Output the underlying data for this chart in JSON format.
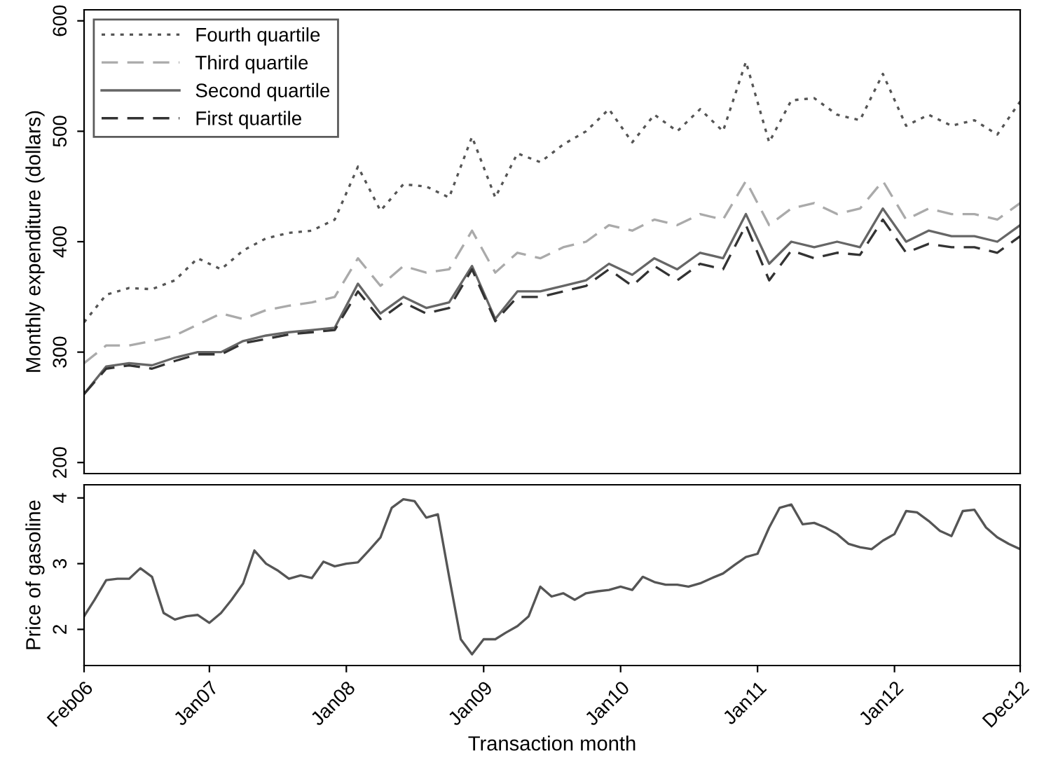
{
  "chart_data": [
    {
      "type": "line",
      "ylabel": "Monthly expenditure (dollars)",
      "xlim": [
        "2006-02",
        "2012-12"
      ],
      "ylim": [
        190,
        610
      ],
      "yticks": [
        200,
        300,
        400,
        500,
        600
      ],
      "tick_labels": "y",
      "grid": false,
      "legend": "top left",
      "marker": "none",
      "x": [
        "2006-02",
        "2006-04",
        "2006-06",
        "2006-08",
        "2006-10",
        "2006-12",
        "2007-02",
        "2007-04",
        "2007-06",
        "2007-08",
        "2007-10",
        "2007-12",
        "2008-02",
        "2008-04",
        "2008-06",
        "2008-08",
        "2008-10",
        "2008-12",
        "2009-02",
        "2009-04",
        "2009-06",
        "2009-08",
        "2009-10",
        "2009-12",
        "2010-02",
        "2010-04",
        "2010-06",
        "2010-08",
        "2010-10",
        "2010-12",
        "2011-02",
        "2011-04",
        "2011-06",
        "2011-08",
        "2011-10",
        "2011-12",
        "2012-02",
        "2012-04",
        "2012-06",
        "2012-08",
        "2012-10",
        "2012-12"
      ],
      "series": [
        {
          "name": "Fourth quartile",
          "color": "#555555",
          "line_style": "dotted",
          "values": [
            327,
            352,
            358,
            357,
            365,
            385,
            375,
            392,
            403,
            408,
            410,
            420,
            468,
            428,
            452,
            450,
            440,
            495,
            440,
            480,
            472,
            488,
            500,
            520,
            490,
            515,
            500,
            520,
            500,
            563,
            490,
            528,
            530,
            515,
            510,
            552,
            505,
            515,
            505,
            510,
            497,
            527
          ]
        },
        {
          "name": "Third quartile",
          "color": "#aaaaaa",
          "line_style": "dashed",
          "values": [
            290,
            306,
            306,
            310,
            315,
            325,
            335,
            330,
            338,
            342,
            345,
            350,
            385,
            360,
            378,
            372,
            375,
            410,
            372,
            390,
            385,
            395,
            400,
            415,
            410,
            420,
            415,
            425,
            420,
            455,
            415,
            430,
            435,
            425,
            430,
            455,
            420,
            430,
            425,
            425,
            420,
            435
          ]
        },
        {
          "name": "Second quartile",
          "color": "#666666",
          "line_style": "solid",
          "values": [
            262,
            287,
            290,
            288,
            295,
            300,
            300,
            310,
            315,
            318,
            320,
            322,
            362,
            335,
            350,
            340,
            345,
            378,
            330,
            355,
            355,
            360,
            365,
            380,
            370,
            385,
            375,
            390,
            385,
            425,
            380,
            400,
            395,
            400,
            395,
            430,
            400,
            410,
            405,
            405,
            400,
            415
          ]
        },
        {
          "name": "First quartile",
          "color": "#333333",
          "line_style": "dashed",
          "values": [
            262,
            285,
            288,
            285,
            292,
            298,
            298,
            308,
            312,
            316,
            318,
            320,
            355,
            330,
            345,
            335,
            340,
            375,
            328,
            350,
            350,
            355,
            360,
            375,
            360,
            378,
            365,
            380,
            375,
            415,
            365,
            392,
            385,
            390,
            388,
            420,
            390,
            398,
            395,
            395,
            390,
            405
          ]
        }
      ]
    },
    {
      "type": "line",
      "ylabel": "Price of gasoline",
      "xlabel": "Transaction month",
      "xlim": [
        "2006-02",
        "2012-12"
      ],
      "ylim": [
        1.45,
        4.2
      ],
      "yticks": [
        2,
        3,
        4
      ],
      "grid": false,
      "marker": "none",
      "xticks": [
        {
          "value": "2006-02",
          "label": "Feb06"
        },
        {
          "value": "2007-01",
          "label": "Jan07"
        },
        {
          "value": "2008-01",
          "label": "Jan08"
        },
        {
          "value": "2009-01",
          "label": "Jan09"
        },
        {
          "value": "2010-01",
          "label": "Jan10"
        },
        {
          "value": "2011-01",
          "label": "Jan11"
        },
        {
          "value": "2012-01",
          "label": "Jan12"
        },
        {
          "value": "2012-12",
          "label": "Dec12"
        }
      ],
      "x": [
        "2006-02",
        "2006-03",
        "2006-04",
        "2006-05",
        "2006-06",
        "2006-07",
        "2006-08",
        "2006-09",
        "2006-10",
        "2006-11",
        "2006-12",
        "2007-01",
        "2007-02",
        "2007-03",
        "2007-04",
        "2007-05",
        "2007-06",
        "2007-07",
        "2007-08",
        "2007-09",
        "2007-10",
        "2007-11",
        "2007-12",
        "2008-01",
        "2008-02",
        "2008-03",
        "2008-04",
        "2008-05",
        "2008-06",
        "2008-07",
        "2008-08",
        "2008-09",
        "2008-10",
        "2008-11",
        "2008-12",
        "2009-01",
        "2009-02",
        "2009-03",
        "2009-04",
        "2009-05",
        "2009-06",
        "2009-07",
        "2009-08",
        "2009-09",
        "2009-10",
        "2009-11",
        "2009-12",
        "2010-01",
        "2010-02",
        "2010-03",
        "2010-04",
        "2010-05",
        "2010-06",
        "2010-07",
        "2010-08",
        "2010-09",
        "2010-10",
        "2010-11",
        "2010-12",
        "2011-01",
        "2011-02",
        "2011-03",
        "2011-04",
        "2011-05",
        "2011-06",
        "2011-07",
        "2011-08",
        "2011-09",
        "2011-10",
        "2011-11",
        "2011-12",
        "2012-01",
        "2012-02",
        "2012-03",
        "2012-04",
        "2012-05",
        "2012-06",
        "2012-07",
        "2012-08",
        "2012-09",
        "2012-10",
        "2012-11",
        "2012-12"
      ],
      "series": [
        {
          "color": "#555555",
          "line_style": "solid",
          "values": [
            2.2,
            2.45,
            2.75,
            2.77,
            2.77,
            2.93,
            2.8,
            2.25,
            2.15,
            2.2,
            2.22,
            2.1,
            2.25,
            2.45,
            2.7,
            3.2,
            3.0,
            2.9,
            2.77,
            2.82,
            2.78,
            3.03,
            2.96,
            3.0,
            3.02,
            3.2,
            3.4,
            3.85,
            3.98,
            3.95,
            3.7,
            3.75,
            2.8,
            1.85,
            1.62,
            1.85,
            1.85,
            1.95,
            2.05,
            2.2,
            2.65,
            2.5,
            2.55,
            2.45,
            2.55,
            2.58,
            2.6,
            2.65,
            2.6,
            2.8,
            2.72,
            2.68,
            2.68,
            2.65,
            2.7,
            2.78,
            2.85,
            2.98,
            3.1,
            3.15,
            3.55,
            3.85,
            3.9,
            3.6,
            3.62,
            3.55,
            3.45,
            3.3,
            3.25,
            3.22,
            3.35,
            3.45,
            3.8,
            3.78,
            3.65,
            3.5,
            3.42,
            3.8,
            3.82,
            3.55,
            3.4,
            3.3,
            3.22
          ]
        }
      ]
    }
  ]
}
